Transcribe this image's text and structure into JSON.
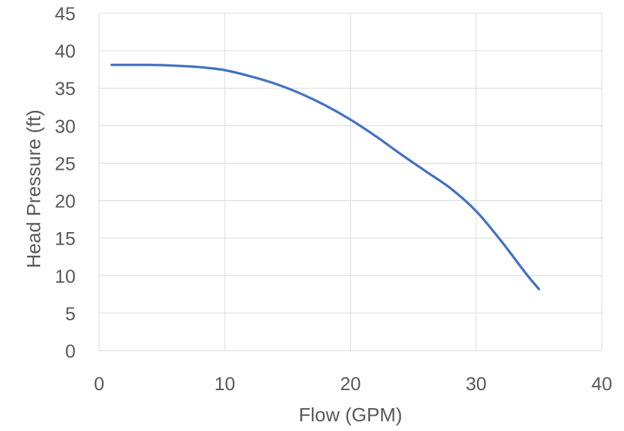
{
  "chart_data": {
    "type": "line",
    "xlabel": "Flow (GPM)",
    "ylabel": "Head Pressure (ft)",
    "xlim": [
      0,
      40
    ],
    "ylim": [
      0,
      45
    ],
    "xticks": [
      0,
      10,
      20,
      30,
      40
    ],
    "yticks": [
      0,
      5,
      10,
      15,
      20,
      25,
      30,
      35,
      40,
      45
    ],
    "grid": true,
    "legend": "none",
    "series": [
      {
        "color": "#4472c4",
        "x": [
          1,
          2,
          4,
          6,
          8,
          10,
          12,
          14,
          16,
          18,
          20,
          22,
          24,
          26,
          28,
          30,
          32,
          34,
          35
        ],
        "y": [
          38.1,
          38.1,
          38.1,
          38.0,
          37.8,
          37.4,
          36.6,
          35.6,
          34.3,
          32.7,
          30.8,
          28.6,
          26.2,
          23.9,
          21.6,
          18.6,
          14.6,
          10.2,
          8.2
        ]
      }
    ]
  }
}
